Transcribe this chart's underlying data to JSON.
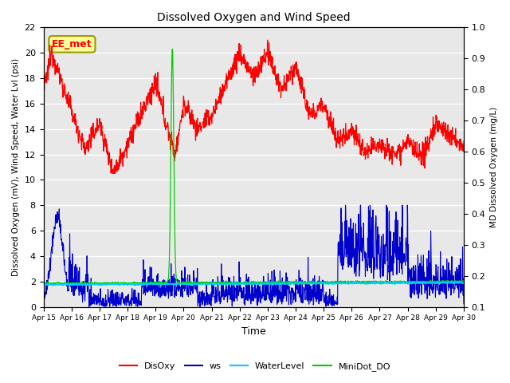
{
  "title": "Dissolved Oxygen and Wind Speed",
  "ylabel_left": "Dissolved Oxygen (mV), Wind Speed, Water Lvl (psi)",
  "ylabel_right": "MD Dissolved Oxygen (mg/L)",
  "xlabel": "Time",
  "ylim_left": [
    0,
    22
  ],
  "ylim_right": [
    0.1,
    1.0
  ],
  "annotation": "EE_met",
  "x_tick_labels": [
    "Apr 15",
    "Apr 16",
    "Apr 17",
    "Apr 18",
    "Apr 19",
    "Apr 20",
    "Apr 21",
    "Apr 22",
    "Apr 23",
    "Apr 24",
    "Apr 25",
    "Apr 26",
    "Apr 27",
    "Apr 28",
    "Apr 29",
    "Apr 30"
  ],
  "yticks_left": [
    0,
    2,
    4,
    6,
    8,
    10,
    12,
    14,
    16,
    18,
    20,
    22
  ],
  "yticks_right": [
    0.1,
    0.2,
    0.3,
    0.4,
    0.5,
    0.6,
    0.7,
    0.8,
    0.9,
    1.0
  ],
  "colors": {
    "DisOxy": "#FF0000",
    "ws": "#0000CC",
    "WaterLevel": "#00CCFF",
    "MiniDot_DO": "#00CC00",
    "background": "#E8E8E8",
    "annotation_bg": "#FFFF99",
    "annotation_border": "#999900"
  },
  "legend_labels": [
    "DisOxy",
    "ws",
    "WaterLevel",
    "MiniDot_DO"
  ]
}
